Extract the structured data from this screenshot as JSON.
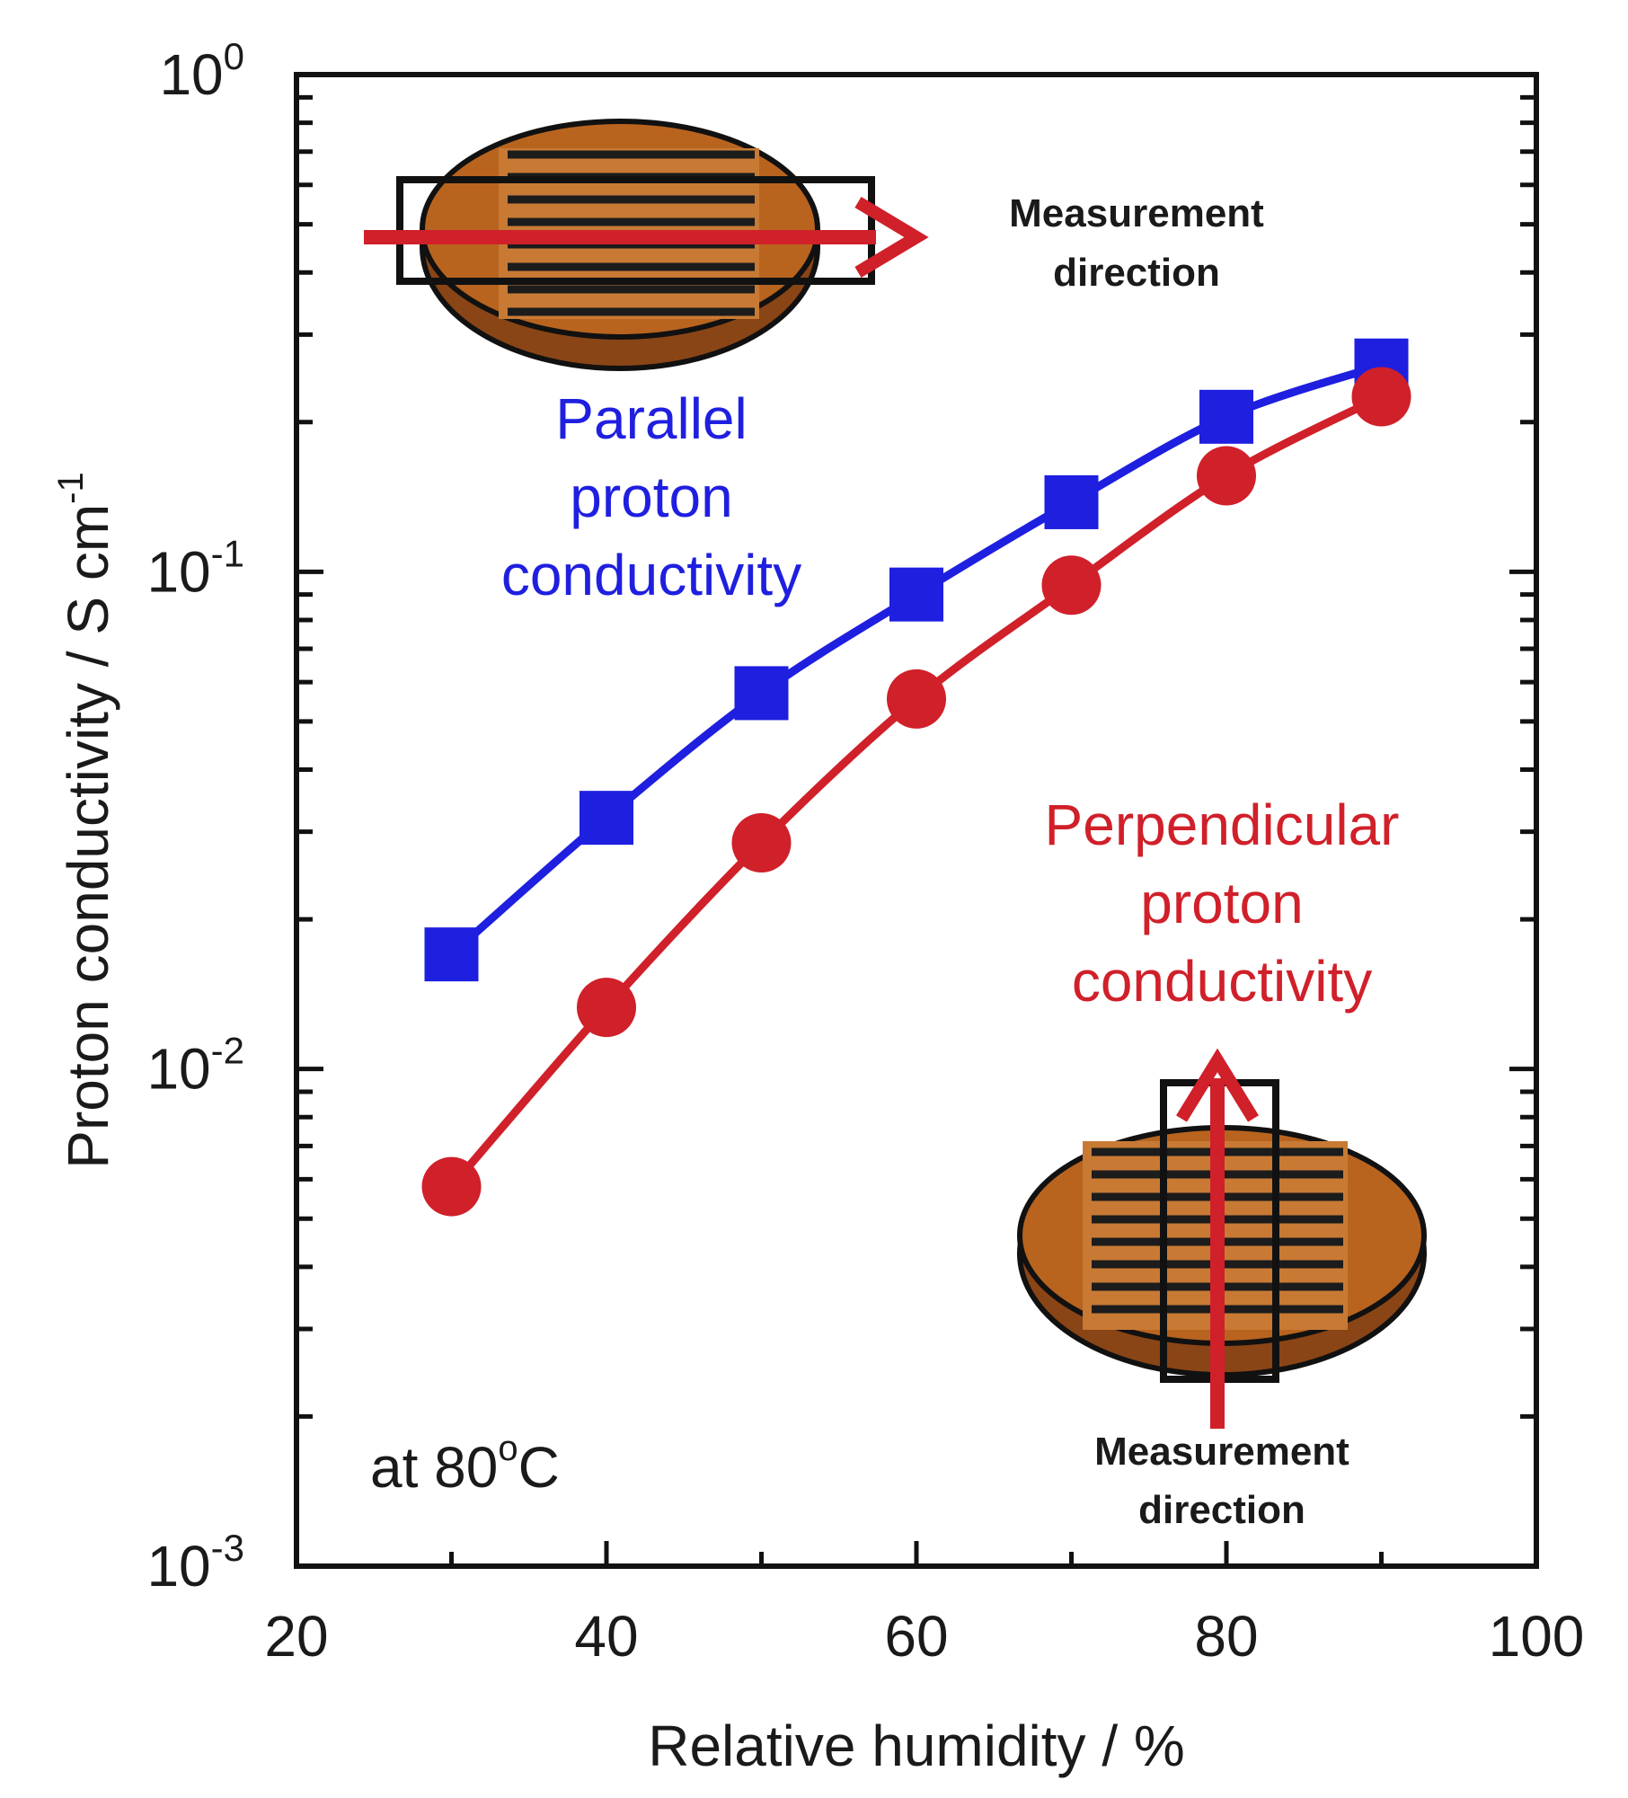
{
  "chart_data": {
    "type": "line",
    "title": "",
    "xlabel": "Relative humidity / %",
    "ylabel": "Proton conductivity / S cm",
    "ylabel_unit_superscript": "-1",
    "x_scale": "linear",
    "y_scale": "log",
    "xlim": [
      20,
      100
    ],
    "ylim": [
      0.001,
      1
    ],
    "x_ticks": [
      20,
      40,
      60,
      80,
      100
    ],
    "y_ticks": [
      {
        "value": 0.001,
        "base": "10",
        "exp": "-3"
      },
      {
        "value": 0.01,
        "base": "10",
        "exp": "-2"
      },
      {
        "value": 0.1,
        "base": "10",
        "exp": "-1"
      },
      {
        "value": 1,
        "base": "10",
        "exp": "0"
      }
    ],
    "grid": false,
    "series": [
      {
        "name": "Parallel proton conductivity",
        "label_lines": [
          "Parallel",
          "proton",
          "conductivity"
        ],
        "color": "#1f1fe0",
        "marker": "square",
        "x": [
          30,
          40,
          50,
          60,
          70,
          80,
          90
        ],
        "values": [
          0.017,
          0.032,
          0.057,
          0.09,
          0.138,
          0.205,
          0.26
        ]
      },
      {
        "name": "Perpendicular proton conductivity",
        "label_lines": [
          "Perpendicular",
          "proton",
          "conductivity"
        ],
        "color": "#d0202a",
        "marker": "circle",
        "x": [
          30,
          40,
          50,
          60,
          70,
          80,
          90
        ],
        "values": [
          0.0058,
          0.0133,
          0.0285,
          0.0555,
          0.094,
          0.156,
          0.225
        ]
      }
    ],
    "annotations": {
      "condition": {
        "prefix": "at 80",
        "superscript": "o",
        "suffix": "C"
      },
      "measurement_label_lines": [
        "Measurement",
        "direction"
      ]
    }
  },
  "colors": {
    "disc_fill": "#b8641f",
    "disc_edge": "#7a3a10",
    "stripe": "#222222",
    "stripe_light": "#d8a870",
    "arrow": "#d0202a"
  }
}
